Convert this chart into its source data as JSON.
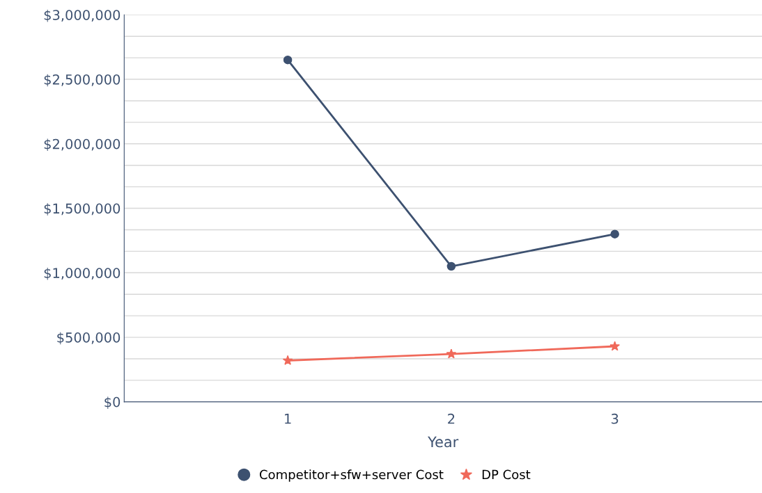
{
  "chart_data": {
    "type": "line",
    "xlabel": "Year",
    "categories": [
      "1",
      "2",
      "3"
    ],
    "series": [
      {
        "name": "Competitor+sfw+server Cost",
        "color": "#3d5170",
        "marker": "circle",
        "values": [
          2650000,
          1050000,
          1300000
        ]
      },
      {
        "name": "DP Cost",
        "color": "#f0695a",
        "marker": "star",
        "values": [
          320000,
          370000,
          430000
        ]
      }
    ],
    "ylim": [
      0,
      3000000
    ],
    "yticks": [
      {
        "value": 0,
        "label": "$0"
      },
      {
        "value": 166667,
        "label": null
      },
      {
        "value": 333333,
        "label": null
      },
      {
        "value": 500000,
        "label": "$500,000"
      },
      {
        "value": 666667,
        "label": null
      },
      {
        "value": 833333,
        "label": null
      },
      {
        "value": 1000000,
        "label": "$1,000,000"
      },
      {
        "value": 1166667,
        "label": null
      },
      {
        "value": 1333333,
        "label": null
      },
      {
        "value": 1500000,
        "label": "$1,500,000"
      },
      {
        "value": 1666667,
        "label": null
      },
      {
        "value": 1833333,
        "label": null
      },
      {
        "value": 2000000,
        "label": "$2,000,000"
      },
      {
        "value": 2166667,
        "label": null
      },
      {
        "value": 2333333,
        "label": null
      },
      {
        "value": 2500000,
        "label": "$2,500,000"
      },
      {
        "value": 2666667,
        "label": null
      },
      {
        "value": 2833333,
        "label": null
      },
      {
        "value": 3000000,
        "label": "$3,000,000"
      }
    ],
    "grid": "y",
    "legend": "bottom"
  }
}
